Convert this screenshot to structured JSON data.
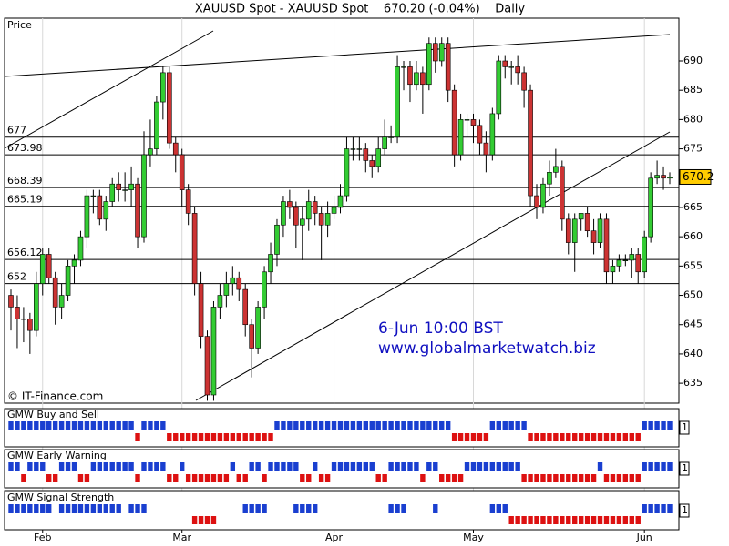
{
  "chart_data": {
    "type": "candlestick",
    "title": "XAUUSD Spot - XAUUSD Spot    670.20 (-0.04%)    Daily",
    "y_label": "Price",
    "annotations": [
      "6-Jun 10:00 BST",
      "www.globalmarketwatch.biz"
    ],
    "credit": "© IT-Finance.com",
    "up_color": "#33cc33",
    "down_color": "#cc3333",
    "ylim": [
      631.6,
      697.3
    ],
    "yticks": [
      635,
      640,
      645,
      650,
      655,
      660,
      665,
      670,
      675,
      680,
      685,
      690
    ],
    "levels": [
      677,
      673.98,
      668.39,
      665.19,
      656.12,
      652
    ],
    "last_price": 670.2,
    "last_price_color": "#ffcc00",
    "months": [
      {
        "label": "Feb",
        "index": 5
      },
      {
        "label": "Mar",
        "index": 27
      },
      {
        "label": "Apr",
        "index": 51
      },
      {
        "label": "May",
        "index": 73
      },
      {
        "label": "Jun",
        "index": 100
      }
    ],
    "candles": [
      [
        650,
        651,
        644,
        648
      ],
      [
        648,
        650,
        641,
        646
      ],
      [
        646,
        648,
        642,
        646
      ],
      [
        646,
        647,
        640,
        644
      ],
      [
        644,
        654,
        643,
        652
      ],
      [
        652,
        658,
        650,
        657
      ],
      [
        657,
        658,
        652,
        653
      ],
      [
        653,
        654,
        645,
        648
      ],
      [
        648,
        652,
        646,
        650
      ],
      [
        650,
        656,
        649,
        655
      ],
      [
        655,
        657,
        652,
        656
      ],
      [
        656,
        661,
        655,
        660
      ],
      [
        660,
        668,
        658,
        667
      ],
      [
        667,
        668,
        664,
        667
      ],
      [
        667,
        668,
        662,
        663
      ],
      [
        663,
        667,
        661,
        666
      ],
      [
        666,
        670,
        665,
        669
      ],
      [
        669,
        671,
        666,
        668
      ],
      [
        668,
        671,
        666,
        668
      ],
      [
        668,
        672,
        665,
        669
      ],
      [
        669,
        670,
        658,
        660
      ],
      [
        660,
        678,
        659,
        674
      ],
      [
        674,
        680,
        672,
        675
      ],
      [
        675,
        684,
        674,
        683
      ],
      [
        683,
        689,
        680,
        688
      ],
      [
        688,
        689,
        675,
        676
      ],
      [
        676,
        677,
        671,
        674
      ],
      [
        674,
        675,
        665,
        668
      ],
      [
        668,
        669,
        662,
        664
      ],
      [
        664,
        665,
        650,
        652
      ],
      [
        652,
        654,
        641,
        643
      ],
      [
        643,
        644,
        632,
        633
      ],
      [
        633,
        649,
        632,
        648
      ],
      [
        648,
        652,
        646,
        650
      ],
      [
        650,
        654,
        648,
        652
      ],
      [
        652,
        655,
        650,
        653
      ],
      [
        653,
        654,
        649,
        651
      ],
      [
        651,
        652,
        643,
        645
      ],
      [
        645,
        646,
        636,
        641
      ],
      [
        641,
        649,
        640,
        648
      ],
      [
        648,
        655,
        646,
        654
      ],
      [
        654,
        659,
        652,
        657
      ],
      [
        657,
        663,
        655,
        662
      ],
      [
        662,
        667,
        660,
        666
      ],
      [
        666,
        668,
        663,
        665
      ],
      [
        665,
        666,
        658,
        662
      ],
      [
        662,
        665,
        656,
        663
      ],
      [
        663,
        668,
        661,
        666
      ],
      [
        666,
        667,
        662,
        664
      ],
      [
        664,
        665,
        656,
        662
      ],
      [
        662,
        666,
        660,
        664
      ],
      [
        664,
        667,
        663,
        665
      ],
      [
        665,
        669,
        664,
        667
      ],
      [
        667,
        677,
        666,
        675
      ],
      [
        675,
        677,
        673,
        675
      ],
      [
        675,
        677,
        673,
        675
      ],
      [
        675,
        676,
        671,
        673
      ],
      [
        673,
        674,
        670,
        672
      ],
      [
        672,
        677,
        671,
        675
      ],
      [
        675,
        680,
        674,
        677
      ],
      [
        677,
        679,
        676,
        677
      ],
      [
        677,
        691,
        676,
        689
      ],
      [
        689,
        690,
        685,
        689
      ],
      [
        689,
        690,
        683,
        686
      ],
      [
        686,
        690,
        685,
        688
      ],
      [
        688,
        689,
        681,
        686
      ],
      [
        686,
        694,
        685,
        693
      ],
      [
        693,
        694,
        688,
        690
      ],
      [
        690,
        694,
        689,
        693
      ],
      [
        693,
        694,
        683,
        685
      ],
      [
        685,
        686,
        672,
        674
      ],
      [
        674,
        681,
        673,
        680
      ],
      [
        680,
        681,
        677,
        680
      ],
      [
        680,
        681,
        676,
        679
      ],
      [
        679,
        680,
        674,
        676
      ],
      [
        676,
        678,
        671,
        674
      ],
      [
        674,
        682,
        673,
        681
      ],
      [
        681,
        691,
        680,
        690
      ],
      [
        690,
        691,
        687,
        689
      ],
      [
        689,
        690,
        686,
        689
      ],
      [
        689,
        691,
        686,
        688
      ],
      [
        688,
        689,
        682,
        685
      ],
      [
        685,
        686,
        665,
        667
      ],
      [
        667,
        669,
        663,
        665
      ],
      [
        665,
        670,
        664,
        669
      ],
      [
        669,
        673,
        667,
        671
      ],
      [
        671,
        675,
        670,
        672
      ],
      [
        672,
        673,
        661,
        663
      ],
      [
        663,
        664,
        657,
        659
      ],
      [
        659,
        664,
        654,
        663
      ],
      [
        663,
        664,
        661,
        664
      ],
      [
        664,
        665,
        660,
        661
      ],
      [
        661,
        663,
        657,
        659
      ],
      [
        659,
        664,
        658,
        663
      ],
      [
        663,
        664,
        652,
        654
      ],
      [
        654,
        656,
        652,
        655
      ],
      [
        655,
        657,
        654,
        656
      ],
      [
        656,
        657,
        655,
        656
      ],
      [
        656,
        658,
        653,
        657
      ],
      [
        657,
        658,
        652,
        654
      ],
      [
        654,
        661,
        653,
        660
      ],
      [
        660,
        671,
        659,
        670
      ],
      [
        670,
        673,
        669,
        670.5
      ],
      [
        670.5,
        672,
        668,
        670
      ],
      [
        670,
        671,
        669,
        670.2
      ]
    ],
    "signal_colors": [
      "#1a3fd0",
      "#dd1111"
    ],
    "panels": [
      {
        "title": "GMW Buy and Sell",
        "scale_label": "1",
        "signals": [
          1,
          1,
          1,
          1,
          1,
          1,
          1,
          1,
          1,
          1,
          1,
          1,
          1,
          1,
          1,
          1,
          1,
          1,
          1,
          1,
          -1,
          1,
          1,
          1,
          1,
          -1,
          -1,
          -1,
          -1,
          -1,
          -1,
          -1,
          -1,
          -1,
          -1,
          -1,
          -1,
          -1,
          -1,
          -1,
          -1,
          -1,
          1,
          1,
          1,
          1,
          1,
          1,
          1,
          1,
          1,
          1,
          1,
          1,
          1,
          1,
          1,
          1,
          1,
          1,
          1,
          1,
          1,
          1,
          1,
          1,
          1,
          1,
          1,
          1,
          -1,
          -1,
          -1,
          -1,
          -1,
          -1,
          1,
          1,
          1,
          1,
          1,
          1,
          -1,
          -1,
          -1,
          -1,
          -1,
          -1,
          -1,
          -1,
          -1,
          -1,
          -1,
          -1,
          -1,
          -1,
          -1,
          -1,
          -1,
          -1,
          1,
          1,
          1,
          1,
          1
        ]
      },
      {
        "title": "GMW Early Warning",
        "scale_label": "1",
        "signals": [
          1,
          1,
          -1,
          1,
          1,
          1,
          -1,
          -1,
          1,
          1,
          1,
          -1,
          -1,
          1,
          1,
          1,
          1,
          1,
          1,
          1,
          -1,
          1,
          1,
          1,
          1,
          -1,
          -1,
          1,
          -1,
          -1,
          -1,
          -1,
          -1,
          -1,
          -1,
          1,
          -1,
          -1,
          1,
          1,
          -1,
          1,
          1,
          1,
          1,
          1,
          -1,
          -1,
          1,
          -1,
          -1,
          1,
          1,
          1,
          1,
          1,
          1,
          1,
          -1,
          -1,
          1,
          1,
          1,
          1,
          1,
          -1,
          1,
          1,
          -1,
          -1,
          -1,
          -1,
          1,
          1,
          1,
          1,
          1,
          1,
          1,
          1,
          1,
          -1,
          -1,
          -1,
          -1,
          -1,
          -1,
          -1,
          -1,
          -1,
          -1,
          -1,
          -1,
          1,
          -1,
          -1,
          -1,
          -1,
          -1,
          -1,
          1,
          1,
          1,
          1,
          1
        ]
      },
      {
        "title": "GMW Signal Strength",
        "scale_label": "1",
        "signals": [
          1,
          1,
          1,
          1,
          1,
          1,
          1,
          0,
          1,
          1,
          1,
          1,
          1,
          1,
          1,
          1,
          1,
          1,
          0,
          1,
          1,
          1,
          0,
          0,
          0,
          0,
          0,
          0,
          0,
          -1,
          -1,
          -1,
          -1,
          0,
          0,
          0,
          0,
          1,
          1,
          1,
          1,
          0,
          0,
          0,
          0,
          1,
          1,
          1,
          1,
          0,
          0,
          0,
          0,
          0,
          0,
          0,
          0,
          0,
          0,
          0,
          1,
          1,
          1,
          0,
          0,
          0,
          0,
          1,
          0,
          0,
          0,
          0,
          0,
          0,
          0,
          0,
          1,
          1,
          1,
          -1,
          -1,
          -1,
          -1,
          -1,
          -1,
          -1,
          -1,
          -1,
          -1,
          -1,
          -1,
          -1,
          -1,
          -1,
          -1,
          -1,
          -1,
          -1,
          -1,
          -1,
          1,
          1,
          1,
          1,
          1
        ]
      }
    ]
  }
}
